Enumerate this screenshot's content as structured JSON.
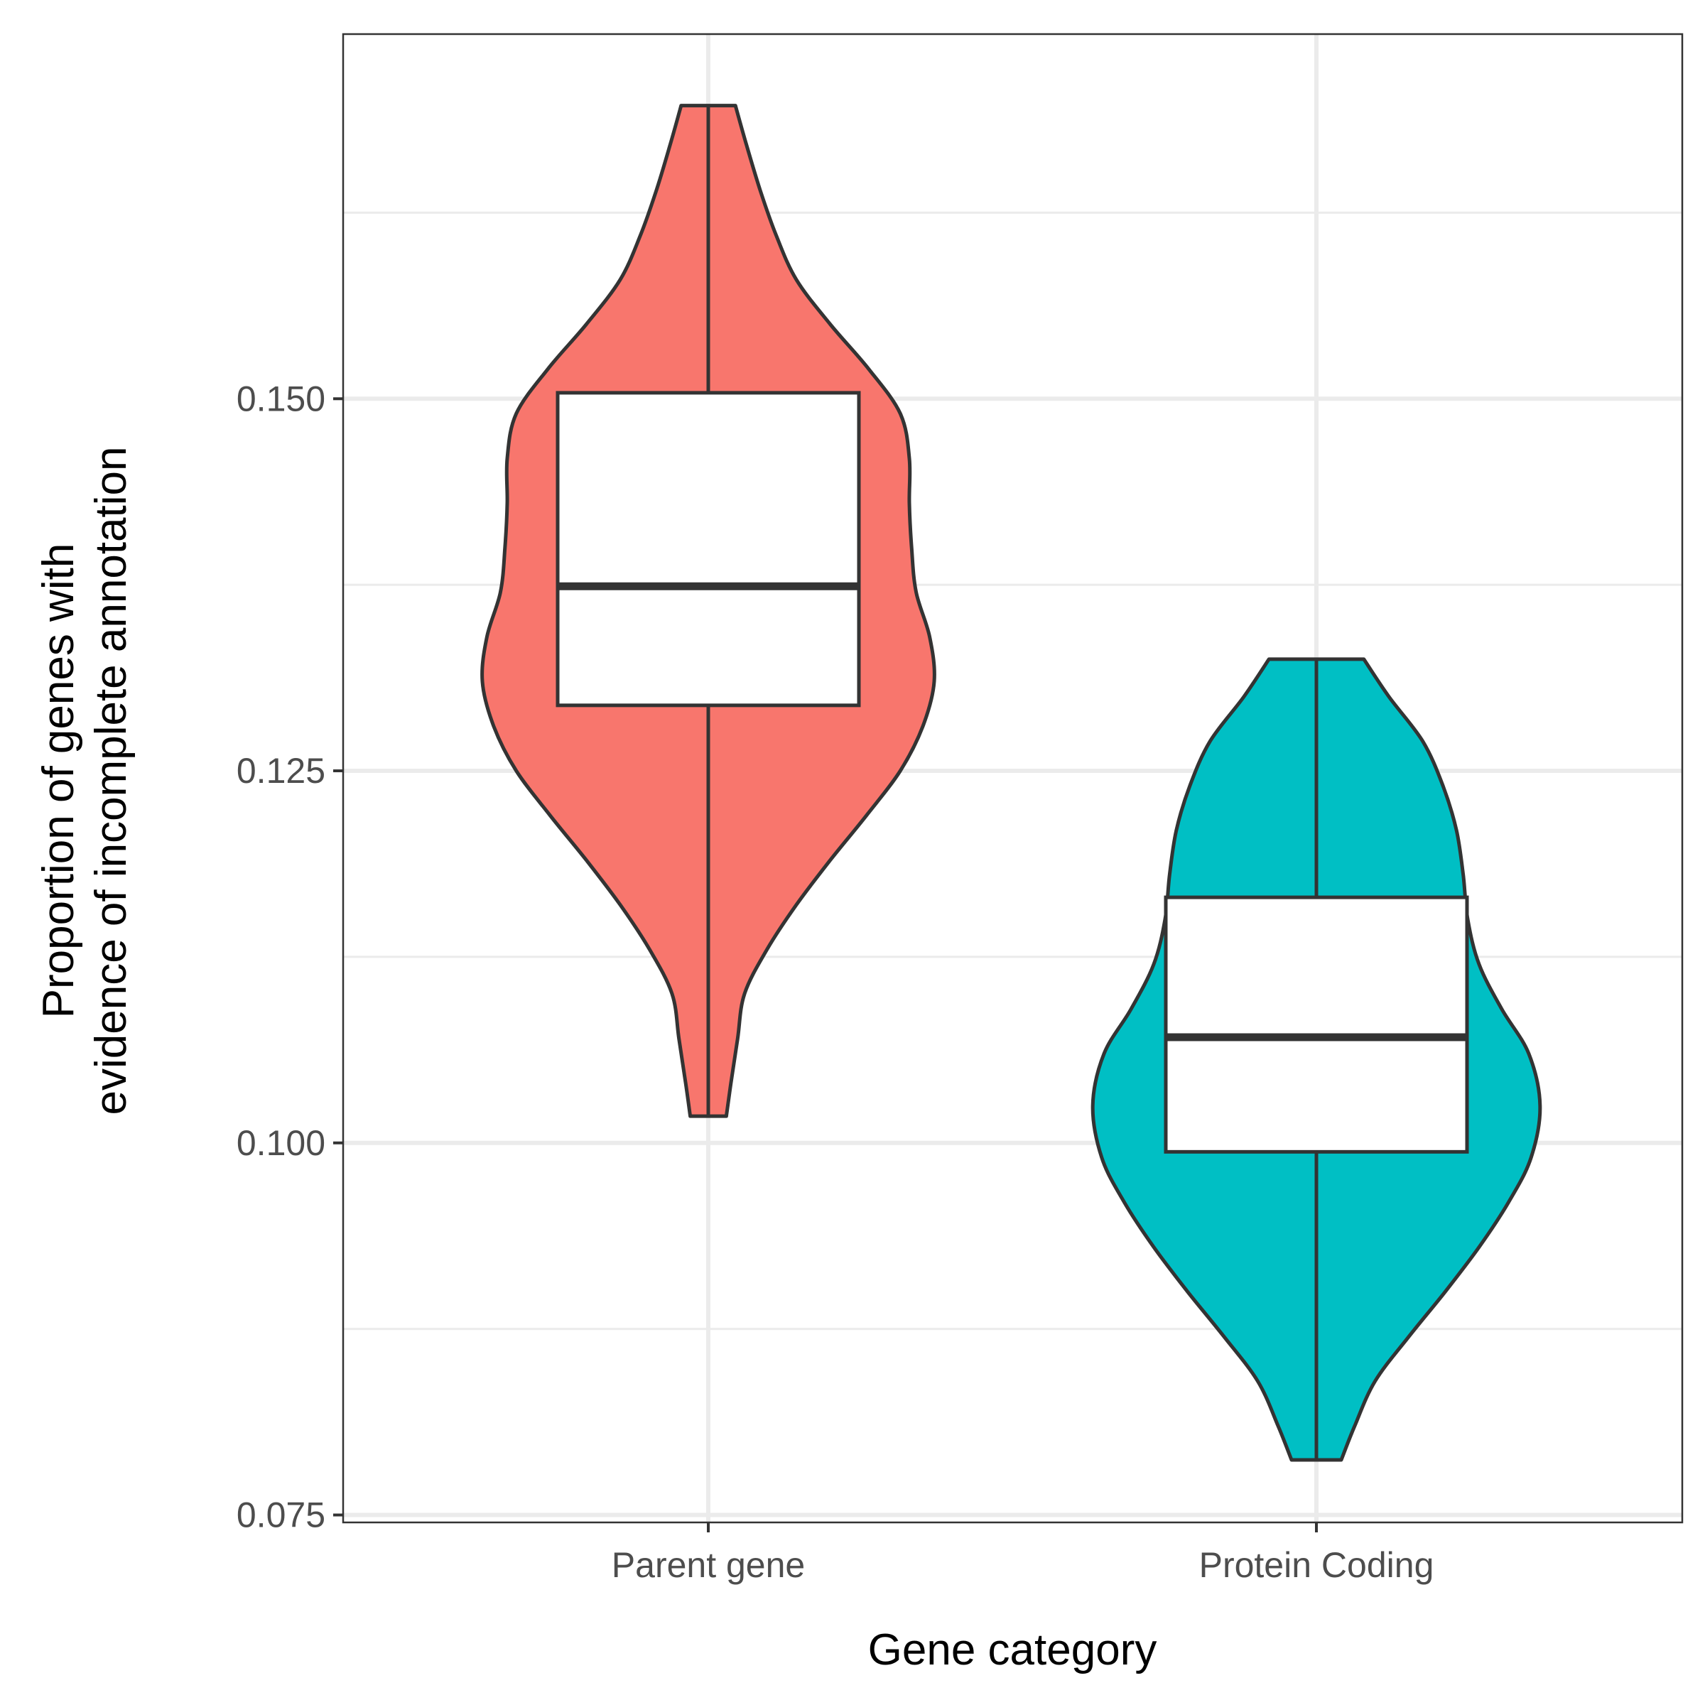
{
  "chart_data": {
    "type": "violin",
    "xlabel": "Gene category",
    "ylabel_lines": [
      "Proportion of genes with",
      "evidence of incomplete annotation"
    ],
    "ylim": [
      0.0745,
      0.1745
    ],
    "yticks": [
      0.075,
      0.1,
      0.125,
      0.15
    ],
    "ytick_labels": [
      "0.075",
      "0.100",
      "0.125",
      "0.150"
    ],
    "y_minor_ticks": [
      0.0875,
      0.1125,
      0.1375,
      0.1625
    ],
    "grid": true,
    "legend": "none",
    "categories": [
      "Parent gene",
      "Protein Coding"
    ],
    "series": [
      {
        "category": "Parent gene",
        "color": "#F8766D",
        "violin_min": 0.1018,
        "violin_max": 0.1697,
        "density_profile": [
          [
            0.1018,
            0.08
          ],
          [
            0.104,
            0.1
          ],
          [
            0.107,
            0.13
          ],
          [
            0.11,
            0.16
          ],
          [
            0.113,
            0.26
          ],
          [
            0.116,
            0.39
          ],
          [
            0.119,
            0.54
          ],
          [
            0.122,
            0.7
          ],
          [
            0.125,
            0.85
          ],
          [
            0.128,
            0.95
          ],
          [
            0.131,
            1.0
          ],
          [
            0.134,
            0.98
          ],
          [
            0.137,
            0.92
          ],
          [
            0.14,
            0.9
          ],
          [
            0.143,
            0.89
          ],
          [
            0.146,
            0.89
          ],
          [
            0.149,
            0.85
          ],
          [
            0.152,
            0.71
          ],
          [
            0.155,
            0.54
          ],
          [
            0.158,
            0.39
          ],
          [
            0.161,
            0.3
          ],
          [
            0.164,
            0.23
          ],
          [
            0.167,
            0.17
          ],
          [
            0.1697,
            0.12
          ]
        ],
        "box": {
          "q1": 0.1294,
          "median": 0.1374,
          "q3": 0.1504,
          "whisker_low": 0.1018,
          "whisker_high": 0.1697
        }
      },
      {
        "category": "Protein Coding",
        "color": "#00BFC4",
        "violin_min": 0.0787,
        "violin_max": 0.1325,
        "density_profile": [
          [
            0.0787,
            0.11
          ],
          [
            0.081,
            0.17
          ],
          [
            0.084,
            0.26
          ],
          [
            0.087,
            0.41
          ],
          [
            0.09,
            0.57
          ],
          [
            0.093,
            0.72
          ],
          [
            0.096,
            0.85
          ],
          [
            0.099,
            0.95
          ],
          [
            0.1025,
            0.99
          ],
          [
            0.106,
            0.94
          ],
          [
            0.109,
            0.82
          ],
          [
            0.112,
            0.72
          ],
          [
            0.115,
            0.67
          ],
          [
            0.118,
            0.65
          ],
          [
            0.121,
            0.62
          ],
          [
            0.124,
            0.56
          ],
          [
            0.127,
            0.47
          ],
          [
            0.13,
            0.32
          ],
          [
            0.1325,
            0.21
          ]
        ],
        "box": {
          "q1": 0.0994,
          "median": 0.1071,
          "q3": 0.1165,
          "whisker_low": 0.0787,
          "whisker_high": 0.1325
        }
      }
    ]
  }
}
